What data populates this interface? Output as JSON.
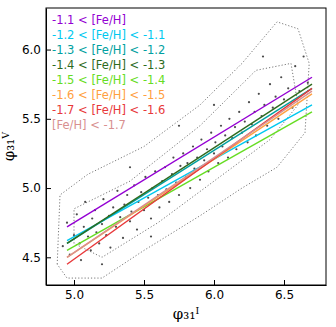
{
  "chart_data": {
    "type": "scatter",
    "x_label": "φ₃₁ᴵ",
    "y_label": "φ₃₁ⱽ",
    "xlim": [
      4.8,
      6.8
    ],
    "ylim": [
      4.3,
      6.3
    ],
    "xticks": [
      {
        "value": 5,
        "label": "5.0"
      },
      {
        "value": 5.5,
        "label": "5.5"
      },
      {
        "value": 6,
        "label": "6.0"
      },
      {
        "value": 6.5,
        "label": "6.5"
      }
    ],
    "yticks": [
      {
        "value": 4.5,
        "label": "4.5"
      },
      {
        "value": 5,
        "label": "5.0"
      },
      {
        "value": 5.5,
        "label": "5.5"
      },
      {
        "value": 6,
        "label": "6.0"
      }
    ],
    "legend": "upper left",
    "series": [
      {
        "type": "scatter",
        "color": "#4a4a4a",
        "marker": "circle",
        "x": [
          4.92,
          4.95,
          4.97,
          5.0,
          5.02,
          5.04,
          5.05,
          5.07,
          5.08,
          5.1,
          5.12,
          5.13,
          5.15,
          5.16,
          5.18,
          5.2,
          5.21,
          5.23,
          5.25,
          5.26,
          5.28,
          5.3,
          5.31,
          5.33,
          5.35,
          5.36,
          5.38,
          5.4,
          5.41,
          5.43,
          5.45,
          5.46,
          5.48,
          5.5,
          5.51,
          5.53,
          5.55,
          5.56,
          5.58,
          5.6,
          5.61,
          5.63,
          5.65,
          5.66,
          5.68,
          5.7,
          5.71,
          5.73,
          5.75,
          5.76,
          5.78,
          5.8,
          5.81,
          5.83,
          5.85,
          5.86,
          5.88,
          5.9,
          5.91,
          5.93,
          5.95,
          5.96,
          5.98,
          6.0,
          6.01,
          6.03,
          6.05,
          6.06,
          6.08,
          6.1,
          6.11,
          6.13,
          6.15,
          6.16,
          6.18,
          6.2,
          6.22,
          6.24,
          6.25,
          6.27,
          6.29,
          6.3,
          6.32,
          6.34,
          6.36,
          6.38,
          6.4,
          6.42,
          6.44,
          6.46,
          6.48,
          6.5,
          6.53,
          6.56,
          6.58,
          6.61,
          6.64,
          6.67,
          5.2,
          5.55,
          6.0,
          5.4,
          6.35,
          5.75
        ],
        "values": [
          4.58,
          4.75,
          4.52,
          4.66,
          4.81,
          4.6,
          4.48,
          4.72,
          4.9,
          4.65,
          4.55,
          4.78,
          4.84,
          4.68,
          4.6,
          4.74,
          4.92,
          4.66,
          4.8,
          4.57,
          4.86,
          4.72,
          4.98,
          4.79,
          4.64,
          4.88,
          4.95,
          4.76,
          4.83,
          5.02,
          4.7,
          4.9,
          4.97,
          4.84,
          5.08,
          4.93,
          4.78,
          5.0,
          5.12,
          4.95,
          4.86,
          5.05,
          5.15,
          4.99,
          4.9,
          5.1,
          5.22,
          5.04,
          4.95,
          5.16,
          5.25,
          5.08,
          5.18,
          5.0,
          5.3,
          5.14,
          5.22,
          5.06,
          5.35,
          5.2,
          5.28,
          5.12,
          5.4,
          5.25,
          5.33,
          5.18,
          5.45,
          5.3,
          5.38,
          5.22,
          5.5,
          5.36,
          5.44,
          5.28,
          5.55,
          5.4,
          5.48,
          5.33,
          5.62,
          5.46,
          5.55,
          5.38,
          5.68,
          5.52,
          5.6,
          5.45,
          5.75,
          5.58,
          5.66,
          5.5,
          5.8,
          5.64,
          5.72,
          5.58,
          5.88,
          5.7,
          5.95,
          5.76,
          4.45,
          4.65,
          5.6,
          5.15,
          5.95,
          5.45
        ]
      },
      {
        "type": "line",
        "color": "#555555",
        "line_style": "dotted",
        "x": [
          4.88,
          4.9,
          5.1,
          5.5,
          5.9,
          6.2,
          6.45,
          6.6,
          6.68,
          6.65,
          6.45,
          6.2,
          5.9,
          5.5,
          5.2,
          4.95,
          4.88
        ],
        "values": [
          4.45,
          4.95,
          5.1,
          5.3,
          5.6,
          5.9,
          6.2,
          6.15,
          5.9,
          5.4,
          5.15,
          5.0,
          4.8,
          4.55,
          4.35,
          4.35,
          4.45
        ]
      },
      {
        "type": "line",
        "color": "#555555",
        "line_style": "dotted",
        "x": [
          5.0,
          5.0,
          5.4,
          5.9,
          6.3,
          6.55,
          6.6,
          6.4,
          6.0,
          5.6,
          5.2,
          5.0
        ],
        "values": [
          4.6,
          4.85,
          5.05,
          5.45,
          5.85,
          5.9,
          5.6,
          5.35,
          5.05,
          4.75,
          4.5,
          4.6
        ]
      },
      {
        "type": "line",
        "name": "-1.1 < [Fe/H]",
        "color": "#9400d3",
        "line_style": "solid",
        "x": [
          4.95,
          6.7
        ],
        "values": [
          4.72,
          5.8
        ]
      },
      {
        "type": "line",
        "name": "-1.2 < [Fe/H] < -1.1",
        "color": "#00c8f0",
        "line_style": "solid",
        "x": [
          4.95,
          6.7
        ],
        "values": [
          4.62,
          5.6
        ]
      },
      {
        "type": "line",
        "name": "-1.3 < [Fe/H] < -1.2",
        "color": "#00a0a0",
        "line_style": "solid",
        "x": [
          4.95,
          6.7
        ],
        "values": [
          4.6,
          5.72
        ]
      },
      {
        "type": "line",
        "name": "-1.4 < [Fe/H] < -1.3",
        "color": "#2e6b1e",
        "line_style": "solid",
        "x": [
          4.95,
          6.7
        ],
        "values": [
          4.6,
          5.75
        ]
      },
      {
        "type": "line",
        "name": "-1.5 < [Fe/H] < -1.4",
        "color": "#66dd22",
        "line_style": "solid",
        "x": [
          4.95,
          6.7
        ],
        "values": [
          4.55,
          5.55
        ]
      },
      {
        "type": "line",
        "name": "-1.6 < [Fe/H] < -1.5",
        "color": "#ffa040",
        "line_style": "solid",
        "x": [
          4.95,
          6.7
        ],
        "values": [
          4.5,
          5.68
        ]
      },
      {
        "type": "line",
        "name": "-1.7 < [Fe/H] < -1.6",
        "color": "#e8383a",
        "line_style": "solid",
        "x": [
          4.95,
          6.7
        ],
        "values": [
          4.45,
          5.72
        ]
      },
      {
        "type": "line",
        "name": "[Fe/H] < -1.7",
        "color": "#d89090",
        "line_style": "solid",
        "x": [
          4.95,
          6.7
        ],
        "values": [
          4.5,
          5.7
        ]
      }
    ]
  }
}
